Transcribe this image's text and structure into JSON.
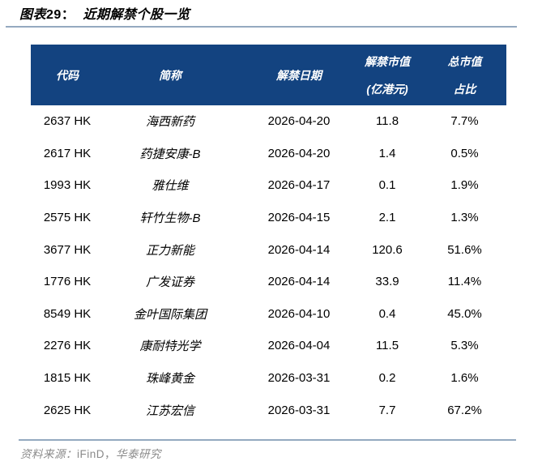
{
  "title": {
    "part1": "图表",
    "part2": "29：",
    "part3": "近期解禁个股一览"
  },
  "table": {
    "headers": [
      [
        "代码"
      ],
      [
        "简称"
      ],
      [
        "解禁日期"
      ],
      [
        "解禁市值",
        "(亿港元)"
      ],
      [
        "总市值",
        "占比"
      ]
    ],
    "rows": [
      [
        "2637 HK",
        "海西新药",
        "2026-04-20",
        "11.8",
        "7.7%"
      ],
      [
        "2617 HK",
        "药捷安康-B",
        "2026-04-20",
        "1.4",
        "0.5%"
      ],
      [
        "1993 HK",
        "雅仕维",
        "2026-04-17",
        "0.1",
        "1.9%"
      ],
      [
        "2575 HK",
        "轩竹生物-B",
        "2026-04-15",
        "2.1",
        "1.3%"
      ],
      [
        "3677 HK",
        "正力新能",
        "2026-04-14",
        "120.6",
        "51.6%"
      ],
      [
        "1776 HK",
        "广发证券",
        "2026-04-14",
        "33.9",
        "11.4%"
      ],
      [
        "8549 HK",
        "金叶国际集团",
        "2026-04-10",
        "0.4",
        "45.0%"
      ],
      [
        "2276 HK",
        "康耐特光学",
        "2026-04-04",
        "11.5",
        "5.3%"
      ],
      [
        "1815 HK",
        "珠峰黄金",
        "2026-03-31",
        "0.2",
        "1.6%"
      ],
      [
        "2625 HK",
        "江苏宏信",
        "2026-03-31",
        "7.7",
        "67.2%"
      ]
    ]
  },
  "footer": {
    "prefix": "资料来源：",
    "source": "iFinD，",
    "suffix": "华泰研究"
  },
  "colors": {
    "header_bg": "#134380",
    "header_text": "#ffffff",
    "rule": "#94a9c0",
    "footer_text": "#8a8a8a",
    "body_text": "#000000"
  }
}
